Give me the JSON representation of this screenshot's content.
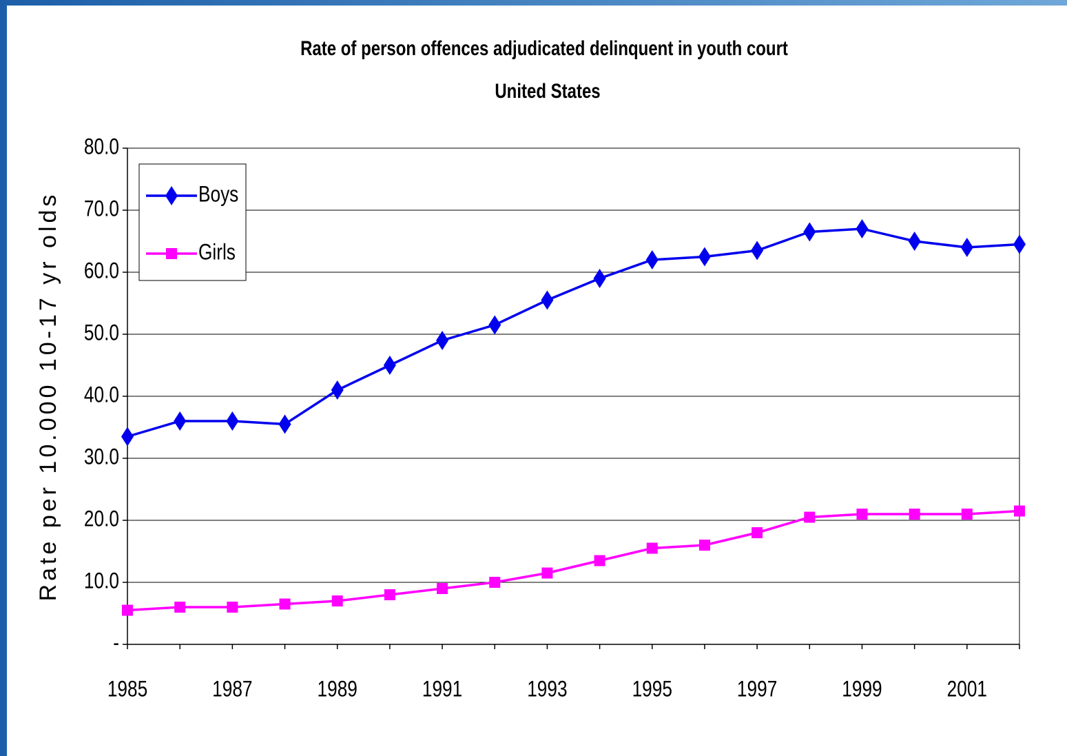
{
  "chart_data": {
    "type": "line",
    "title": "Rate of person offences adjudicated delinquent in youth court",
    "subtitle": "United States",
    "y_label": "Rate per 10.000 10-17 yr olds",
    "x": [
      1985,
      1986,
      1987,
      1988,
      1989,
      1990,
      1991,
      1992,
      1993,
      1994,
      1995,
      1996,
      1997,
      1998,
      1999,
      2000,
      2001,
      2002
    ],
    "xlim": [
      1985,
      2002
    ],
    "xticks": [
      1985,
      1987,
      1989,
      1991,
      1993,
      1995,
      1997,
      1999,
      2001
    ],
    "ylim": [
      0,
      80
    ],
    "yticks": [
      {
        "value": 0,
        "label": "-"
      },
      {
        "value": 10,
        "label": "10.0"
      },
      {
        "value": 20,
        "label": "20.0"
      },
      {
        "value": 30,
        "label": "30.0"
      },
      {
        "value": 40,
        "label": "40.0"
      },
      {
        "value": 50,
        "label": "50.0"
      },
      {
        "value": 60,
        "label": "60.0"
      },
      {
        "value": 70,
        "label": "70.0"
      },
      {
        "value": 80,
        "label": "80.0"
      }
    ],
    "grid": true,
    "legend": "upper left",
    "series": [
      {
        "name": "Boys",
        "color": "#0000ee",
        "marker": "diamond",
        "values": [
          33.5,
          36,
          36,
          35.5,
          41,
          45,
          49,
          51.5,
          55.5,
          59,
          62,
          62.5,
          63.5,
          66.5,
          67,
          65,
          64,
          64.5
        ]
      },
      {
        "name": "Girls",
        "color": "#ff00ff",
        "marker": "square",
        "values": [
          5.5,
          6,
          6,
          6.5,
          7,
          8,
          9,
          10,
          11.5,
          13.5,
          15.5,
          16,
          18,
          20.5,
          21,
          21,
          21,
          21.5
        ]
      }
    ]
  }
}
